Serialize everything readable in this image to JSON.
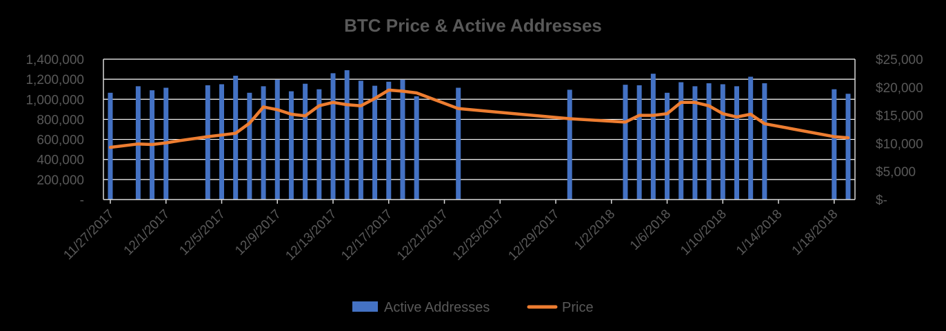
{
  "chart_data": {
    "type": "bar+line",
    "title": "BTC Price & Active Addresses",
    "colors": {
      "background": "#000000",
      "bars": "#4472C4",
      "price_line": "#ED7D31",
      "gridlines": "#FFFFFF",
      "axis": "#D9D9D9",
      "text": "#595959"
    },
    "x_axis": {
      "type": "date",
      "range": [
        "2017-11-27",
        "2018-01-19"
      ],
      "tick_labels": [
        "11/27/2017",
        "12/1/2017",
        "12/5/2017",
        "12/9/2017",
        "12/13/2017",
        "12/17/2017",
        "12/21/2017",
        "12/25/2017",
        "12/29/2017",
        "1/2/2018",
        "1/6/2018",
        "1/10/2018",
        "1/14/2018",
        "1/18/2018"
      ],
      "tick_dates": [
        "2017-11-27",
        "2017-12-01",
        "2017-12-05",
        "2017-12-09",
        "2017-12-13",
        "2017-12-17",
        "2017-12-21",
        "2017-12-25",
        "2017-12-29",
        "2018-01-02",
        "2018-01-06",
        "2018-01-10",
        "2018-01-14",
        "2018-01-18"
      ]
    },
    "y_left": {
      "range": [
        0,
        1400000
      ],
      "tick_labels": [
        "-",
        "200,000",
        "400,000",
        "600,000",
        "800,000",
        "1,000,000",
        "1,200,000",
        "1,400,000"
      ]
    },
    "y_right": {
      "range": [
        0,
        25000
      ],
      "tick_labels": [
        "$-",
        "$5,000",
        "$10,000",
        "$15,000",
        "$20,000",
        "$25,000"
      ]
    },
    "grid": true,
    "legend": {
      "position": "bottom",
      "entries": [
        "Active Addresses",
        "Price"
      ]
    },
    "series": [
      {
        "name": "Active Addresses",
        "type": "bar",
        "axis": "left",
        "points": [
          {
            "x": "2017-11-27",
            "y": 1065000
          },
          {
            "x": "2017-11-29",
            "y": 1130000
          },
          {
            "x": "2017-11-30",
            "y": 1090000
          },
          {
            "x": "2017-12-01",
            "y": 1115000
          },
          {
            "x": "2017-12-04",
            "y": 1140000
          },
          {
            "x": "2017-12-05",
            "y": 1150000
          },
          {
            "x": "2017-12-06",
            "y": 1235000
          },
          {
            "x": "2017-12-07",
            "y": 1065000
          },
          {
            "x": "2017-12-08",
            "y": 1130000
          },
          {
            "x": "2017-12-09",
            "y": 1195000
          },
          {
            "x": "2017-12-10",
            "y": 1080000
          },
          {
            "x": "2017-12-11",
            "y": 1155000
          },
          {
            "x": "2017-12-12",
            "y": 1100000
          },
          {
            "x": "2017-12-13",
            "y": 1260000
          },
          {
            "x": "2017-12-14",
            "y": 1290000
          },
          {
            "x": "2017-12-15",
            "y": 1185000
          },
          {
            "x": "2017-12-16",
            "y": 1135000
          },
          {
            "x": "2017-12-17",
            "y": 1175000
          },
          {
            "x": "2017-12-18",
            "y": 1195000
          },
          {
            "x": "2017-12-19",
            "y": 1030000
          },
          {
            "x": "2017-12-22",
            "y": 1115000
          },
          {
            "x": "2017-12-30",
            "y": 1095000
          },
          {
            "x": "2018-01-03",
            "y": 1145000
          },
          {
            "x": "2018-01-04",
            "y": 1140000
          },
          {
            "x": "2018-01-05",
            "y": 1255000
          },
          {
            "x": "2018-01-06",
            "y": 1065000
          },
          {
            "x": "2018-01-07",
            "y": 1170000
          },
          {
            "x": "2018-01-08",
            "y": 1130000
          },
          {
            "x": "2018-01-09",
            "y": 1160000
          },
          {
            "x": "2018-01-10",
            "y": 1150000
          },
          {
            "x": "2018-01-11",
            "y": 1130000
          },
          {
            "x": "2018-01-12",
            "y": 1225000
          },
          {
            "x": "2018-01-13",
            "y": 1160000
          },
          {
            "x": "2018-01-18",
            "y": 1100000
          },
          {
            "x": "2018-01-19",
            "y": 1055000
          }
        ]
      },
      {
        "name": "Price",
        "type": "line",
        "axis": "right",
        "points": [
          {
            "x": "2017-11-27",
            "y": 9300
          },
          {
            "x": "2017-11-29",
            "y": 9900
          },
          {
            "x": "2017-11-30",
            "y": 9800
          },
          {
            "x": "2017-12-01",
            "y": 10100
          },
          {
            "x": "2017-12-02",
            "y": 10500
          },
          {
            "x": "2017-12-04",
            "y": 11200
          },
          {
            "x": "2017-12-05",
            "y": 11500
          },
          {
            "x": "2017-12-06",
            "y": 11800
          },
          {
            "x": "2017-12-07",
            "y": 13600
          },
          {
            "x": "2017-12-08",
            "y": 16500
          },
          {
            "x": "2017-12-09",
            "y": 16000
          },
          {
            "x": "2017-12-10",
            "y": 15200
          },
          {
            "x": "2017-12-11",
            "y": 14900
          },
          {
            "x": "2017-12-12",
            "y": 16700
          },
          {
            "x": "2017-12-13",
            "y": 17300
          },
          {
            "x": "2017-12-14",
            "y": 16900
          },
          {
            "x": "2017-12-15",
            "y": 16700
          },
          {
            "x": "2017-12-16",
            "y": 18000
          },
          {
            "x": "2017-12-17",
            "y": 19500
          },
          {
            "x": "2017-12-18",
            "y": 19300
          },
          {
            "x": "2017-12-19",
            "y": 19000
          },
          {
            "x": "2017-12-22",
            "y": 16200
          },
          {
            "x": "2017-12-30",
            "y": 14400
          },
          {
            "x": "2018-01-03",
            "y": 13800
          },
          {
            "x": "2018-01-04",
            "y": 15000
          },
          {
            "x": "2018-01-05",
            "y": 15000
          },
          {
            "x": "2018-01-06",
            "y": 15300
          },
          {
            "x": "2018-01-07",
            "y": 17300
          },
          {
            "x": "2018-01-08",
            "y": 17300
          },
          {
            "x": "2018-01-09",
            "y": 16700
          },
          {
            "x": "2018-01-10",
            "y": 15300
          },
          {
            "x": "2018-01-11",
            "y": 14700
          },
          {
            "x": "2018-01-12",
            "y": 15200
          },
          {
            "x": "2018-01-13",
            "y": 13500
          },
          {
            "x": "2018-01-18",
            "y": 11200
          },
          {
            "x": "2018-01-19",
            "y": 11000
          }
        ]
      }
    ]
  }
}
